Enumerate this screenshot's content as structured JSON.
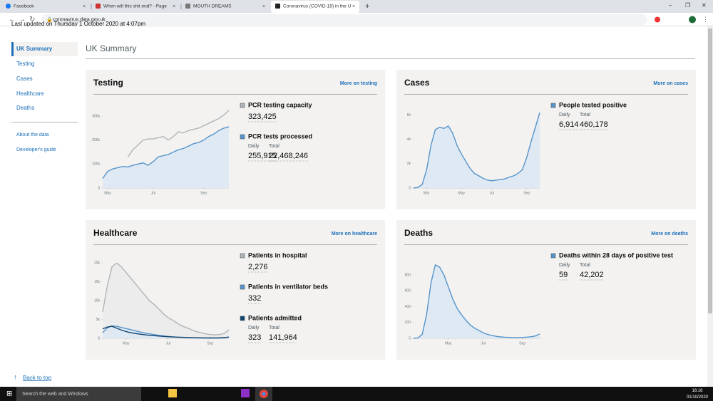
{
  "browser": {
    "tabs": [
      "Facebook",
      "When will this shit end? - Page",
      "MOUTH DREAMS",
      "Coronavirus (COVID-19) in the U"
    ],
    "url": "coronavirus.data.gov.uk"
  },
  "page": {
    "last_updated": "Last updated on Thursday 1 October 2020 at 4:07pm",
    "nav": [
      "UK Summary",
      "Testing",
      "Cases",
      "Healthcare",
      "Deaths"
    ],
    "nav_secondary": [
      "About the data",
      "Developer's guide"
    ],
    "heading": "UK Summary",
    "back_to_top": "Back to top"
  },
  "cards": [
    {
      "title": "Testing",
      "link": "More on testing",
      "chart": {
        "xlim": [
          0,
          25
        ],
        "ylim": [
          0,
          330000
        ],
        "yticks": [
          0,
          {
            "value": 100000,
            "label": "100k"
          },
          {
            "value": 200000,
            "label": "200k"
          },
          {
            "value": 300000,
            "label": "300k"
          }
        ],
        "xticks": [
          {
            "value": 1,
            "label": "May"
          },
          {
            "value": 10,
            "label": "Jul"
          },
          {
            "value": 20,
            "label": "Sep"
          }
        ],
        "series": [
          {
            "color": "#b1b4b6",
            "fill": null,
            "values": [
              null,
              null,
              null,
              null,
              null,
              130000,
              160000,
              180000,
              200000,
              205000,
              205000,
              210000,
              215000,
              200000,
              215000,
              235000,
              230000,
              240000,
              245000,
              250000,
              260000,
              270000,
              280000,
              290000,
              305000,
              323425
            ]
          },
          {
            "color": "#5694ca",
            "fill": "#dfe9f4",
            "values": [
              40000,
              70000,
              80000,
              85000,
              90000,
              88000,
              95000,
              100000,
              105000,
              95000,
              110000,
              130000,
              135000,
              140000,
              150000,
              160000,
              165000,
              175000,
              185000,
              190000,
              200000,
              215000,
              225000,
              240000,
              250000,
              255915
            ]
          }
        ]
      },
      "metrics": [
        {
          "label": "PCR testing capacity",
          "color": "#b1b4b6",
          "value": "323,425"
        },
        {
          "label": "PCR tests processed",
          "color": "#5694ca",
          "daily_label": "Daily",
          "daily": "255,915",
          "total_label": "Total",
          "total": "22,468,246"
        }
      ]
    },
    {
      "title": "Cases",
      "link": "More on cases",
      "chart": {
        "xlim": [
          0,
          29
        ],
        "ylim": [
          0,
          6500
        ],
        "yticks": [
          0,
          {
            "value": 2000,
            "label": "2k"
          },
          {
            "value": 4000,
            "label": "4k"
          },
          {
            "value": 6000,
            "label": "6k"
          }
        ],
        "xticks": [
          {
            "value": 3,
            "label": "Mar"
          },
          {
            "value": 11,
            "label": "May"
          },
          {
            "value": 18,
            "label": "Jul"
          },
          {
            "value": 26,
            "label": "Sep"
          }
        ],
        "series": [
          {
            "color": "#5694ca",
            "fill": "#dfe9f4",
            "values": [
              0,
              50,
              300,
              1500,
              3500,
              4800,
              5000,
              4900,
              5100,
              4500,
              3500,
              2800,
              2200,
              1600,
              1200,
              1000,
              800,
              650,
              600,
              650,
              700,
              750,
              900,
              1000,
              1200,
              1500,
              2500,
              3800,
              5000,
              6200
            ]
          }
        ]
      },
      "metrics": [
        {
          "label": "People tested positive",
          "color": "#5694ca",
          "daily_label": "Daily",
          "daily": "6,914",
          "total_label": "Total",
          "total": "460,178"
        }
      ]
    },
    {
      "title": "Healthcare",
      "link": "More on healthcare",
      "chart": {
        "xlim": [
          0,
          27
        ],
        "ylim": [
          0,
          21000
        ],
        "yticks": [
          0,
          {
            "value": 5000,
            "label": "5k"
          },
          {
            "value": 10000,
            "label": "10k"
          },
          {
            "value": 15000,
            "label": "15k"
          },
          {
            "value": 20000,
            "label": "20k"
          }
        ],
        "xticks": [
          {
            "value": 5,
            "label": "May"
          },
          {
            "value": 14,
            "label": "Jul"
          },
          {
            "value": 23,
            "label": "Sep"
          }
        ],
        "series": [
          {
            "color": "#b1b4b6",
            "fill": "#ececec",
            "values": [
              7000,
              14000,
              19000,
              20000,
              19000,
              17500,
              16000,
              14500,
              13000,
              11500,
              10000,
              9000,
              7800,
              6500,
              5500,
              4800,
              4000,
              3300,
              2800,
              2300,
              1800,
              1500,
              1200,
              1000,
              900,
              1000,
              1300,
              2276
            ]
          },
          {
            "color": "#5694ca",
            "fill": "#dfe9f4",
            "values": [
              1500,
              2800,
              3300,
              3200,
              2900,
              2600,
              2300,
              2000,
              1700,
              1400,
              1200,
              1000,
              800,
              650,
              500,
              400,
              320,
              260,
              200,
              150,
              110,
              90,
              80,
              70,
              70,
              80,
              120,
              332
            ]
          },
          {
            "color": "#12436d",
            "fill": null,
            "values": [
              2500,
              3000,
              3200,
              2700,
              2200,
              1800,
              1500,
              1300,
              1100,
              950,
              800,
              700,
              600,
              500,
              420,
              360,
              300,
              260,
              220,
              180,
              150,
              130,
              110,
              100,
              100,
              120,
              200,
              323
            ]
          }
        ]
      },
      "metrics": [
        {
          "label": "Patients in hospital",
          "color": "#b1b4b6",
          "value": "2,276"
        },
        {
          "label": "Patients in ventilator beds",
          "color": "#5694ca",
          "value": "332"
        },
        {
          "label": "Patients admitted",
          "color": "#12436d",
          "daily_label": "Daily",
          "daily": "323",
          "total_label": "Total",
          "total": "141,964"
        }
      ]
    },
    {
      "title": "Deaths",
      "link": "More on deaths",
      "chart": {
        "xlim": [
          0,
          29
        ],
        "ylim": [
          0,
          1000
        ],
        "yticks": [
          0,
          200,
          400,
          600,
          800
        ],
        "xticks": [
          {
            "value": 8,
            "label": "May"
          },
          {
            "value": 16,
            "label": "Jul"
          },
          {
            "value": 25,
            "label": "Sep"
          }
        ],
        "series": [
          {
            "color": "#5694ca",
            "fill": "#dfe9f4",
            "values": [
              0,
              5,
              50,
              300,
              700,
              930,
              900,
              800,
              650,
              500,
              380,
              300,
              230,
              170,
              130,
              100,
              70,
              50,
              35,
              25,
              18,
              14,
              12,
              10,
              10,
              12,
              15,
              20,
              30,
              55
            ]
          }
        ]
      },
      "metrics": [
        {
          "label": "Deaths within 28 days of positive test",
          "color": "#5694ca",
          "daily_label": "Daily",
          "daily": "59",
          "total_label": "Total",
          "total": "42,202"
        }
      ]
    }
  ],
  "taskbar": {
    "search": "Search the web and Windows",
    "time": "16:16",
    "date": "01/10/2020"
  }
}
